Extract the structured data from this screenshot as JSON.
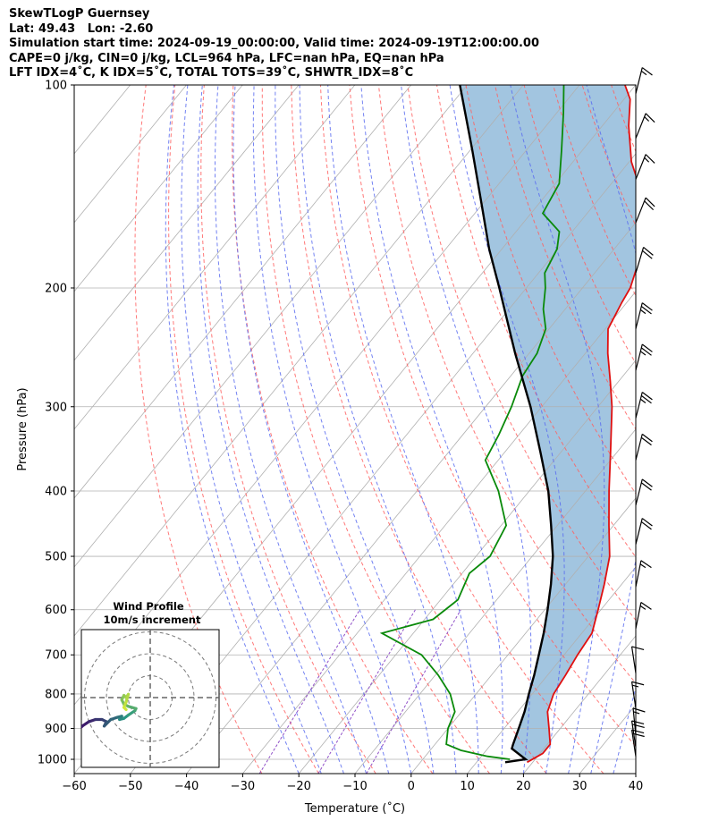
{
  "header": {
    "line1": "SkewTLogP Guernsey",
    "line2": "Lat: 49.43   Lon: -2.60",
    "line3": "Simulation start time: 2024-09-19_00:00:00, Valid time: 2024-09-19T12:00:00.00",
    "line4": "CAPE=0 j/kg, CIN=0 j/kg, LCL=964 hPa, LFC=nan hPa, EQ=nan hPa",
    "line5": "LFT IDX=4˚C, K IDX=5˚C, TOTAL TOTS=39˚C, SHWTR_IDX=8˚C"
  },
  "chart_data": {
    "type": "skew-t",
    "xlabel": "Temperature (˚C)",
    "ylabel": "Pressure (hPa)",
    "xlim": [
      -60,
      40
    ],
    "ylim": [
      1050,
      100
    ],
    "log_y": true,
    "grid": true,
    "x_ticks": [
      "−60",
      "−50",
      "−40",
      "−30",
      "−20",
      "−10",
      "0",
      "10",
      "20",
      "30",
      "40"
    ],
    "y_ticks": [
      {
        "p": 100,
        "label": "100"
      },
      {
        "p": 200,
        "label": "200"
      },
      {
        "p": 300,
        "label": "300"
      },
      {
        "p": 400,
        "label": "400"
      },
      {
        "p": 500,
        "label": "500"
      },
      {
        "p": 600,
        "label": "600"
      },
      {
        "p": 700,
        "label": "700"
      },
      {
        "p": 800,
        "label": "800"
      },
      {
        "p": 900,
        "label": "900"
      },
      {
        "p": 1000,
        "label": "1000"
      }
    ],
    "colors": {
      "temperature": "#e01010",
      "dewpoint": "#0a8a0a",
      "parcel": "#000000",
      "shade": "#a2c5e0",
      "dry_adiabat": "#ff6060",
      "moist_adiabat": "#5a6cf0",
      "mixing_ratio": "#9050c8",
      "isotherm": "#b0b0b0",
      "inset_track_start": "#40106a",
      "inset_track_end": "#d0e838"
    },
    "temperature_profile": [
      {
        "p": 1010,
        "t": 19
      },
      {
        "p": 980,
        "t": 20.5
      },
      {
        "p": 950,
        "t": 20.5
      },
      {
        "p": 900,
        "t": 18
      },
      {
        "p": 850,
        "t": 15.3
      },
      {
        "p": 800,
        "t": 13.8
      },
      {
        "p": 750,
        "t": 13.2
      },
      {
        "p": 700,
        "t": 12.4
      },
      {
        "p": 650,
        "t": 11.8
      },
      {
        "p": 600,
        "t": 9.5
      },
      {
        "p": 550,
        "t": 6.9
      },
      {
        "p": 500,
        "t": 3.8
      },
      {
        "p": 450,
        "t": -0.8
      },
      {
        "p": 400,
        "t": -5.8
      },
      {
        "p": 350,
        "t": -11.2
      },
      {
        "p": 300,
        "t": -17.5
      },
      {
        "p": 275,
        "t": -21.5
      },
      {
        "p": 250,
        "t": -26
      },
      {
        "p": 230,
        "t": -29.5
      },
      {
        "p": 210,
        "t": -30.9
      },
      {
        "p": 200,
        "t": -31.5
      },
      {
        "p": 180,
        "t": -34.2
      },
      {
        "p": 170,
        "t": -35.6
      },
      {
        "p": 160,
        "t": -38.4
      },
      {
        "p": 145,
        "t": -43.1
      },
      {
        "p": 130,
        "t": -49.6
      },
      {
        "p": 115,
        "t": -55.3
      },
      {
        "p": 105,
        "t": -58.9
      },
      {
        "p": 100,
        "t": -61.9
      }
    ],
    "dewpoint_profile": [
      {
        "p": 1000,
        "t": 15.5
      },
      {
        "p": 990,
        "t": 11.1
      },
      {
        "p": 970,
        "t": 5.5
      },
      {
        "p": 950,
        "t": 2
      },
      {
        "p": 900,
        "t": 0
      },
      {
        "p": 850,
        "t": -1.2
      },
      {
        "p": 800,
        "t": -4.6
      },
      {
        "p": 750,
        "t": -9.5
      },
      {
        "p": 700,
        "t": -15.4
      },
      {
        "p": 650,
        "t": -25.6
      },
      {
        "p": 620,
        "t": -18.5
      },
      {
        "p": 580,
        "t": -16.9
      },
      {
        "p": 530,
        "t": -18.7
      },
      {
        "p": 500,
        "t": -17.5
      },
      {
        "p": 450,
        "t": -19.1
      },
      {
        "p": 400,
        "t": -25.5
      },
      {
        "p": 360,
        "t": -32.3
      },
      {
        "p": 330,
        "t": -33.6
      },
      {
        "p": 300,
        "t": -35.4
      },
      {
        "p": 270,
        "t": -37.9
      },
      {
        "p": 250,
        "t": -38.6
      },
      {
        "p": 230,
        "t": -40.6
      },
      {
        "p": 215,
        "t": -43.9
      },
      {
        "p": 200,
        "t": -46.6
      },
      {
        "p": 190,
        "t": -48.9
      },
      {
        "p": 175,
        "t": -50.2
      },
      {
        "p": 165,
        "t": -52.3
      },
      {
        "p": 155,
        "t": -57.9
      },
      {
        "p": 140,
        "t": -59.3
      },
      {
        "p": 125,
        "t": -63.7
      },
      {
        "p": 110,
        "t": -68.8
      },
      {
        "p": 100,
        "t": -72.8
      }
    ],
    "parcel_profile": [
      {
        "p": 1000,
        "t": 18.3
      },
      {
        "p": 964,
        "t": 14.3
      },
      {
        "p": 950,
        "t": 13.9
      },
      {
        "p": 900,
        "t": 12.6
      },
      {
        "p": 850,
        "t": 11.2
      },
      {
        "p": 800,
        "t": 9.4
      },
      {
        "p": 750,
        "t": 7.6
      },
      {
        "p": 700,
        "t": 5.5
      },
      {
        "p": 650,
        "t": 3.2
      },
      {
        "p": 600,
        "t": 0.5
      },
      {
        "p": 550,
        "t": -2.6
      },
      {
        "p": 500,
        "t": -6.3
      },
      {
        "p": 450,
        "t": -11.1
      },
      {
        "p": 400,
        "t": -16.6
      },
      {
        "p": 350,
        "t": -23.7
      },
      {
        "p": 300,
        "t": -32
      },
      {
        "p": 250,
        "t": -42.5
      },
      {
        "p": 200,
        "t": -54.8
      },
      {
        "p": 175,
        "t": -62.3
      },
      {
        "p": 150,
        "t": -70.2
      },
      {
        "p": 125,
        "t": -79.6
      },
      {
        "p": 100,
        "t": -91.3
      }
    ],
    "surface_parcel_start": {
      "p": 1010,
      "t": 15.1
    },
    "wind_barbs": [
      {
        "p": 103,
        "u": 5,
        "v": 20,
        "speed_kt": 15
      },
      {
        "p": 120,
        "u": 8,
        "v": 20,
        "speed_kt": 15
      },
      {
        "p": 138,
        "u": 8,
        "v": 20,
        "speed_kt": 15
      },
      {
        "p": 160,
        "u": 8,
        "v": 20,
        "speed_kt": 20
      },
      {
        "p": 190,
        "u": 6,
        "v": 20,
        "speed_kt": 20
      },
      {
        "p": 230,
        "u": 5,
        "v": 20,
        "speed_kt": 25
      },
      {
        "p": 265,
        "u": 5,
        "v": 20,
        "speed_kt": 25
      },
      {
        "p": 312,
        "u": 5,
        "v": 20,
        "speed_kt": 25
      },
      {
        "p": 360,
        "u": 5,
        "v": 20,
        "speed_kt": 20
      },
      {
        "p": 420,
        "u": 5,
        "v": 20,
        "speed_kt": 20
      },
      {
        "p": 480,
        "u": 5,
        "v": 20,
        "speed_kt": 20
      },
      {
        "p": 555,
        "u": 4,
        "v": 20,
        "speed_kt": 15
      },
      {
        "p": 640,
        "u": 4,
        "v": 20,
        "speed_kt": 15
      },
      {
        "p": 745,
        "u": -3,
        "v": 20,
        "speed_kt": 10
      },
      {
        "p": 840,
        "u": -3,
        "v": 20,
        "speed_kt": 15
      },
      {
        "p": 920,
        "u": -2,
        "v": 20,
        "speed_kt": 15
      },
      {
        "p": 960,
        "u": -3,
        "v": 20,
        "speed_kt": 20
      },
      {
        "p": 990,
        "u": -3,
        "v": 20,
        "speed_kt": 20
      }
    ],
    "inset": {
      "title": "Wind Profile",
      "subtitle": "10m/s increment",
      "rings": [
        10,
        20,
        30
      ],
      "hodograph": [
        {
          "u": -34,
          "v": -16
        },
        {
          "u": -31,
          "v": -13
        },
        {
          "u": -28,
          "v": -11
        },
        {
          "u": -25,
          "v": -10
        },
        {
          "u": -22,
          "v": -10
        },
        {
          "u": -20,
          "v": -11
        },
        {
          "u": -21,
          "v": -13
        },
        {
          "u": -18,
          "v": -10
        },
        {
          "u": -15,
          "v": -9
        },
        {
          "u": -13,
          "v": -8.5
        },
        {
          "u": -14,
          "v": -10
        },
        {
          "u": -12,
          "v": -9.5
        },
        {
          "u": -10,
          "v": -8
        },
        {
          "u": -7,
          "v": -6
        },
        {
          "u": -6.5,
          "v": -5
        },
        {
          "u": -10,
          "v": -4
        },
        {
          "u": -12,
          "v": -3
        },
        {
          "u": -13,
          "v": -1
        },
        {
          "u": -12,
          "v": 1
        },
        {
          "u": -11,
          "v": 0
        },
        {
          "u": -10,
          "v": 1.5
        },
        {
          "u": -11,
          "v": -2
        },
        {
          "u": -12,
          "v": -4.5
        },
        {
          "u": -11,
          "v": -5.5
        }
      ]
    }
  }
}
